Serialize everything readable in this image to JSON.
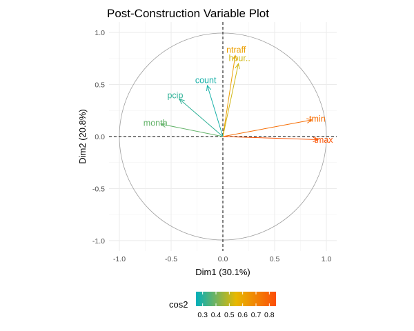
{
  "chart_data": {
    "type": "scatter",
    "subtype": "pca-variable-correlation-circle",
    "title": "Post-Construction Variable Plot",
    "xlabel": "Dim1 (30.1%)",
    "ylabel": "Dim2 (20.8%)",
    "xlim": [
      -1.1,
      1.1
    ],
    "ylim": [
      -1.1,
      1.1
    ],
    "xticks": [
      -1.0,
      -0.5,
      0.0,
      0.5,
      1.0
    ],
    "yticks": [
      -1.0,
      -0.5,
      0.0,
      0.5,
      1.0
    ],
    "xtick_labels": [
      "-1.0",
      "-0.5",
      "0.0",
      "0.5",
      "1.0"
    ],
    "ytick_labels": [
      "-1.0",
      "-0.5",
      "0.0",
      "0.5",
      "1.0"
    ],
    "grid": true,
    "legend_position": "bottom",
    "variables": [
      {
        "name": "ntraff",
        "x": 0.12,
        "y": 0.78,
        "cos2": 0.62
      },
      {
        "name": "hour..",
        "x": 0.15,
        "y": 0.7,
        "cos2": 0.52
      },
      {
        "name": "count",
        "x": -0.15,
        "y": 0.49,
        "cos2": 0.28
      },
      {
        "name": "pcip",
        "x": -0.42,
        "y": 0.36,
        "cos2": 0.31
      },
      {
        "name": "month",
        "x": -0.6,
        "y": 0.12,
        "cos2": 0.38
      },
      {
        "name": "tmin",
        "x": 0.86,
        "y": 0.16,
        "cos2": 0.76
      },
      {
        "name": "tmax",
        "x": 0.92,
        "y": -0.03,
        "cos2": 0.83
      }
    ],
    "legend": {
      "title": "cos2",
      "ticks": [
        0.3,
        0.4,
        0.5,
        0.6,
        0.7,
        0.8
      ],
      "tick_labels": [
        "0.3",
        "0.4",
        "0.5",
        "0.6",
        "0.7",
        "0.8"
      ],
      "range": [
        0.25,
        0.85
      ],
      "gradient_colors": [
        "#00AFBB",
        "#E7B800",
        "#FC4E07"
      ]
    }
  }
}
